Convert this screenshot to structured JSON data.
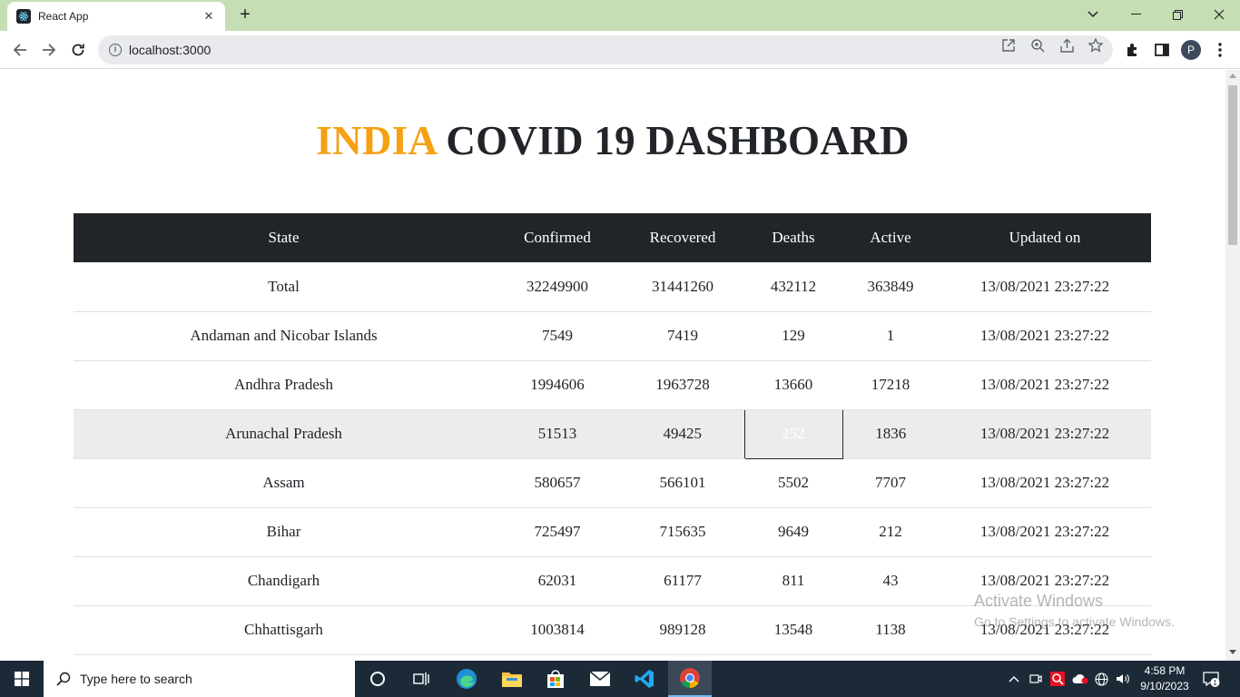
{
  "browser": {
    "tab_title": "React App",
    "url": "localhost:3000",
    "profile_initial": "P"
  },
  "page": {
    "heading_accent": "INDIA",
    "heading_rest": " COVID 19 DASHBOARD",
    "columns": [
      "State",
      "Confirmed",
      "Recovered",
      "Deaths",
      "Active",
      "Updated on"
    ],
    "rows": [
      {
        "state": "Total",
        "confirmed": "32249900",
        "recovered": "31441260",
        "deaths": "432112",
        "active": "363849",
        "updated": "13/08/2021 23:27:22"
      },
      {
        "state": "Andaman and Nicobar Islands",
        "confirmed": "7549",
        "recovered": "7419",
        "deaths": "129",
        "active": "1",
        "updated": "13/08/2021 23:27:22"
      },
      {
        "state": "Andhra Pradesh",
        "confirmed": "1994606",
        "recovered": "1963728",
        "deaths": "13660",
        "active": "17218",
        "updated": "13/08/2021 23:27:22"
      },
      {
        "state": "Arunachal Pradesh",
        "confirmed": "51513",
        "recovered": "49425",
        "deaths": "252",
        "active": "1836",
        "updated": "13/08/2021 23:27:22"
      },
      {
        "state": "Assam",
        "confirmed": "580657",
        "recovered": "566101",
        "deaths": "5502",
        "active": "7707",
        "updated": "13/08/2021 23:27:22"
      },
      {
        "state": "Bihar",
        "confirmed": "725497",
        "recovered": "715635",
        "deaths": "9649",
        "active": "212",
        "updated": "13/08/2021 23:27:22"
      },
      {
        "state": "Chandigarh",
        "confirmed": "62031",
        "recovered": "61177",
        "deaths": "811",
        "active": "43",
        "updated": "13/08/2021 23:27:22"
      },
      {
        "state": "Chhattisgarh",
        "confirmed": "1003814",
        "recovered": "989128",
        "deaths": "13548",
        "active": "1138",
        "updated": "13/08/2021 23:27:22"
      }
    ],
    "highlight_row_color": "#ececec",
    "highlight_cell_color": "#d9506d",
    "header_bg": "#212529",
    "accent_color": "#f5a113"
  },
  "watermark": {
    "line1": "Activate Windows",
    "line2": "Go to Settings to activate Windows."
  },
  "taskbar": {
    "search_placeholder": "Type here to search",
    "time": "4:58 PM",
    "date": "9/10/2023",
    "notification_count": "1",
    "pinned": [
      "task-view-icon",
      "widgets-icon",
      "edge-icon",
      "file-explorer-icon",
      "store-icon",
      "mail-icon",
      "vscode-icon",
      "chrome-icon"
    ]
  }
}
